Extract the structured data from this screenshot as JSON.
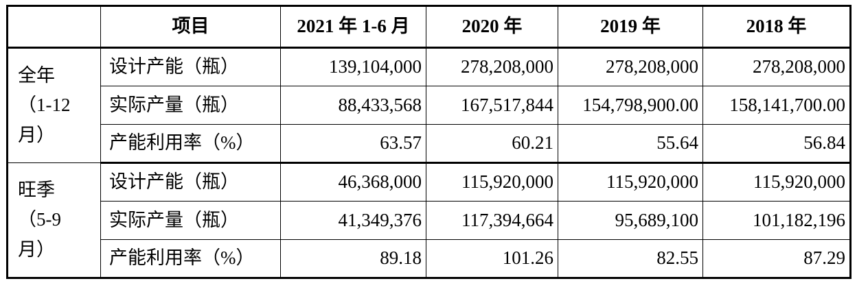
{
  "headers": [
    "",
    "项目",
    "2021 年 1-6 月",
    "2020 年",
    "2019 年",
    "2018 年"
  ],
  "groups": [
    {
      "label_lines": [
        "全年",
        "（1-12",
        "月）"
      ],
      "rows": [
        {
          "item": "设计产能（瓶）",
          "values": [
            "139,104,000",
            "278,208,000",
            "278,208,000",
            "278,208,000"
          ]
        },
        {
          "item": "实际产量（瓶）",
          "values": [
            "88,433,568",
            "167,517,844",
            "154,798,900.00",
            "158,141,700.00"
          ]
        },
        {
          "item": "产能利用率（%）",
          "values": [
            "63.57",
            "60.21",
            "55.64",
            "56.84"
          ]
        }
      ]
    },
    {
      "label_lines": [
        "旺季",
        "（5-9",
        "月）"
      ],
      "rows": [
        {
          "item": "设计产能（瓶）",
          "values": [
            "46,368,000",
            "115,920,000",
            "115,920,000",
            "115,920,000"
          ]
        },
        {
          "item": "实际产量（瓶）",
          "values": [
            "41,349,376",
            "117,394,664",
            "95,689,100",
            "101,182,196"
          ]
        },
        {
          "item": "产能利用率（%）",
          "values": [
            "89.18",
            "101.26",
            "82.55",
            "87.29"
          ]
        }
      ]
    }
  ]
}
